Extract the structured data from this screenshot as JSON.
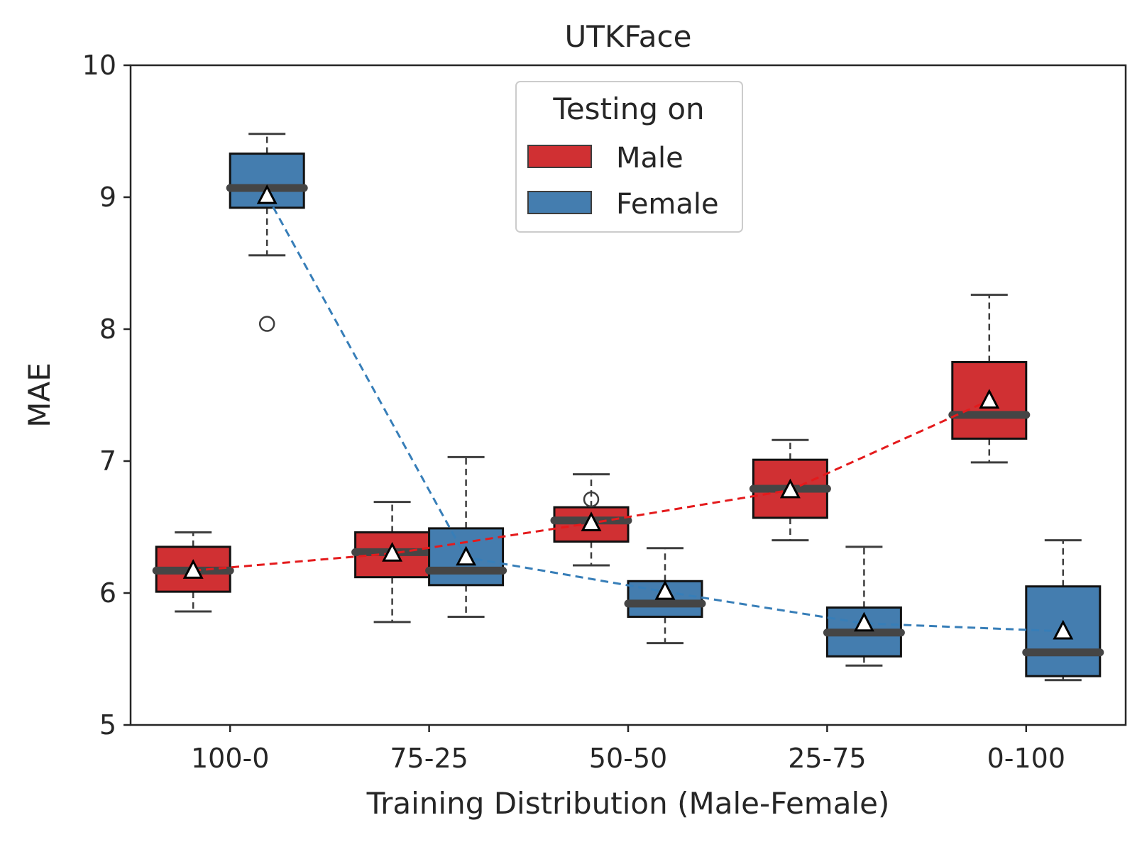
{
  "chart_data": {
    "type": "box",
    "title": "UTKFace",
    "xlabel": "Training Distribution (Male-Female)",
    "ylabel": "MAE",
    "ylim": [
      5,
      10
    ],
    "yticks": [
      "5",
      "6",
      "7",
      "8",
      "9",
      "10"
    ],
    "categories": [
      "100-0",
      "75-25",
      "50-50",
      "25-75",
      "0-100"
    ],
    "grid": false,
    "legend": {
      "title": "Testing on",
      "position": "top-center"
    },
    "series": [
      {
        "name": "Male",
        "color": "#d03033",
        "line_color": "#e41a1c",
        "boxes": [
          {
            "whislo": 5.86,
            "q1": 6.01,
            "med": 6.17,
            "q3": 6.35,
            "whishi": 6.46,
            "mean": 6.17,
            "fliers": []
          },
          {
            "whislo": 5.78,
            "q1": 6.12,
            "med": 6.31,
            "q3": 6.46,
            "whishi": 6.69,
            "mean": 6.3,
            "fliers": []
          },
          {
            "whislo": 6.21,
            "q1": 6.39,
            "med": 6.55,
            "q3": 6.65,
            "whishi": 6.9,
            "mean": 6.53,
            "fliers": [
              6.71
            ]
          },
          {
            "whislo": 6.4,
            "q1": 6.57,
            "med": 6.79,
            "q3": 7.01,
            "whishi": 7.16,
            "mean": 6.78,
            "fliers": []
          },
          {
            "whislo": 6.99,
            "q1": 7.17,
            "med": 7.35,
            "q3": 7.75,
            "whishi": 8.26,
            "mean": 7.46,
            "fliers": []
          }
        ]
      },
      {
        "name": "Female",
        "color": "#447daf",
        "line_color": "#377eb8",
        "boxes": [
          {
            "whislo": 8.56,
            "q1": 8.92,
            "med": 9.07,
            "q3": 9.33,
            "whishi": 9.48,
            "mean": 9.01,
            "fliers": [
              8.04
            ]
          },
          {
            "whislo": 5.82,
            "q1": 6.06,
            "med": 6.17,
            "q3": 6.49,
            "whishi": 7.03,
            "mean": 6.27,
            "fliers": []
          },
          {
            "whislo": 5.62,
            "q1": 5.82,
            "med": 5.92,
            "q3": 6.09,
            "whishi": 6.34,
            "mean": 6.01,
            "fliers": []
          },
          {
            "whislo": 5.45,
            "q1": 5.52,
            "med": 5.7,
            "q3": 5.89,
            "whishi": 6.35,
            "mean": 5.77,
            "fliers": []
          },
          {
            "whislo": 5.34,
            "q1": 5.37,
            "med": 5.55,
            "q3": 6.05,
            "whishi": 6.4,
            "mean": 5.71,
            "fliers": []
          }
        ]
      }
    ]
  }
}
